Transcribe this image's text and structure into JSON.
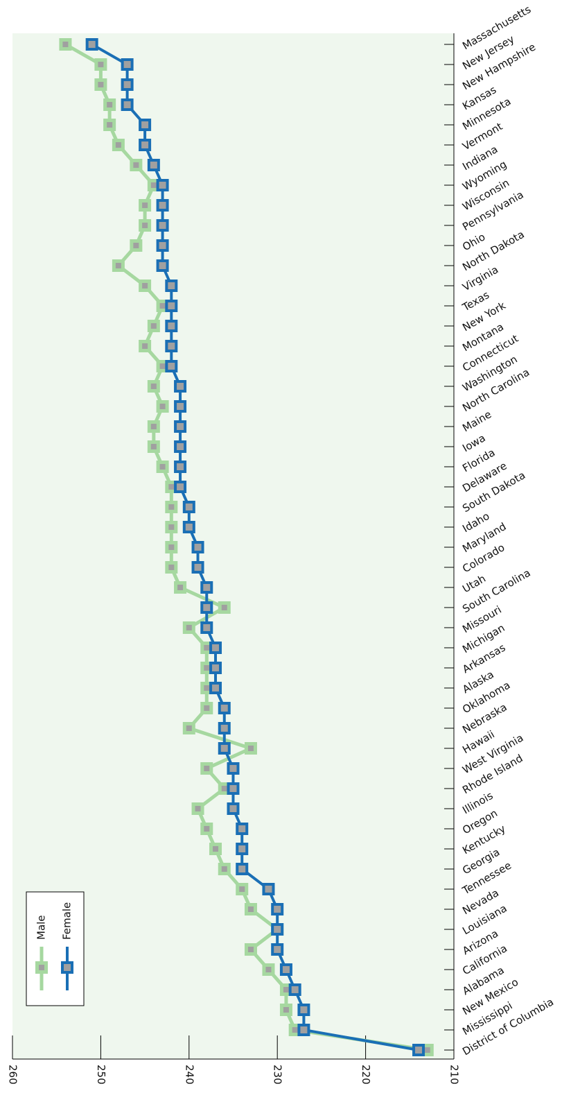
{
  "chart_data": {
    "type": "line",
    "orientation": "horizontal",
    "categories": [
      "Massachusetts",
      "New Jersey",
      "New Hampshire",
      "Kansas",
      "Minnesota",
      "Vermont",
      "Indiana",
      "Wyoming",
      "Wisconsin",
      "Pennsylvania",
      "Ohio",
      "North Dakota",
      "Virginia",
      "Texas",
      "New York",
      "Montana",
      "Connecticut",
      "Washington",
      "North Carolina",
      "Maine",
      "Iowa",
      "Florida",
      "Delaware",
      "South Dakota",
      "Idaho",
      "Maryland",
      "Colorado",
      "Utah",
      "South Carolina",
      "Missouri",
      "Michigan",
      "Arkansas",
      "Alaska",
      "Oklahoma",
      "Nebraska",
      "Hawaii",
      "West Virginia",
      "Rhode Island",
      "Illinois",
      "Oregon",
      "Kentucky",
      "Georgia",
      "Tennessee",
      "Nevada",
      "Louisiana",
      "Arizona",
      "California",
      "Alabama",
      "New Mexico",
      "Mississippi",
      "District of Columbia"
    ],
    "series": [
      {
        "name": "Male",
        "color": "#a6d8a0",
        "values": [
          254,
          250,
          250,
          249,
          249,
          248,
          246,
          244,
          245,
          245,
          246,
          248,
          245,
          243,
          244,
          245,
          243,
          244,
          243,
          244,
          244,
          243,
          242,
          242,
          242,
          242,
          242,
          241,
          236,
          240,
          238,
          238,
          238,
          238,
          240,
          233,
          238,
          236,
          239,
          238,
          237,
          236,
          234,
          233,
          230,
          233,
          231,
          229,
          229,
          228,
          213
        ]
      },
      {
        "name": "Female",
        "color": "#1a6fb5",
        "values": [
          251,
          247,
          247,
          247,
          245,
          245,
          244,
          243,
          243,
          243,
          243,
          243,
          242,
          242,
          242,
          242,
          242,
          241,
          241,
          241,
          241,
          241,
          241,
          240,
          240,
          239,
          239,
          238,
          238,
          238,
          237,
          237,
          237,
          236,
          236,
          236,
          235,
          235,
          235,
          234,
          234,
          234,
          231,
          230,
          230,
          230,
          229,
          228,
          227,
          227,
          214
        ]
      }
    ],
    "xlim": [
      260,
      210
    ],
    "xticks": [
      260,
      250,
      240,
      230,
      220,
      210
    ],
    "legend": "lower left"
  }
}
